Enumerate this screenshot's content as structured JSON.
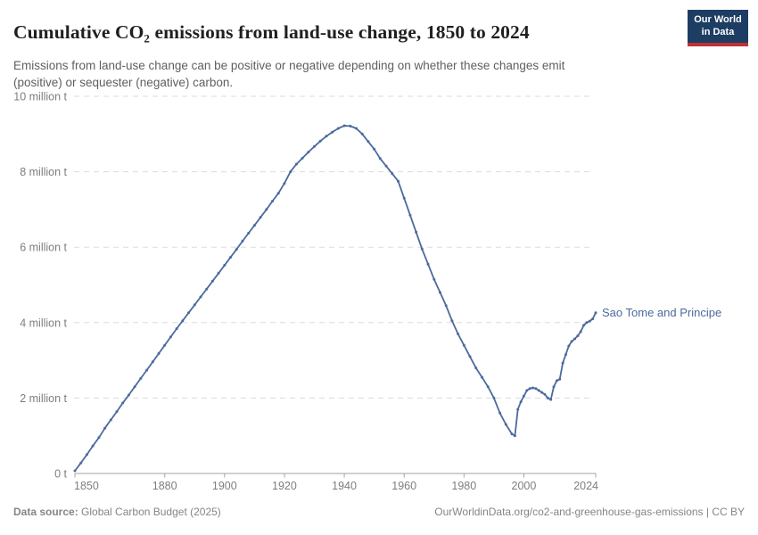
{
  "header": {
    "title": "Cumulative CO₂ emissions from land-use change, 1850 to 2024",
    "subtitle": "Emissions from land-use change can be positive or negative depending on whether these changes emit (positive) or sequester (negative) carbon.",
    "logo": {
      "line1": "Our World",
      "line2": "in Data"
    }
  },
  "footer": {
    "source_label": "Data source:",
    "source_value": " Global Carbon Budget (2025)",
    "attribution": "OurWorldinData.org/co2-and-greenhouse-gas-emissions | CC BY"
  },
  "colors": {
    "line": "#4c6a9c",
    "grid": "#dadcde",
    "axis": "#a3a3a3",
    "tick_label": "#7e7e7e",
    "logo_bg": "#1d3d63",
    "logo_bar": "#bf3036"
  },
  "chart_data": {
    "type": "line",
    "title": "Cumulative CO₂ emissions from land-use change, 1850 to 2024",
    "subtitle": "Emissions from land-use change can be positive or negative depending on whether these changes emit (positive) or sequester (negative) carbon.",
    "xlabel": "",
    "ylabel": "cumulative CO₂ emissions",
    "unit": "million t",
    "grid": "dashed horizontal",
    "legend_position": "end-of-line label",
    "x": {
      "min": 1850,
      "max": 2024,
      "ticks": [
        1850,
        1880,
        1900,
        1920,
        1940,
        1960,
        1980,
        2000,
        2024
      ]
    },
    "y": {
      "min": 0,
      "max": 10,
      "tick_values": [
        0,
        2,
        4,
        6,
        8,
        10
      ],
      "tick_labels": [
        "0 t",
        "2 million t",
        "4 million t",
        "6 million t",
        "8 million t",
        "10 million t"
      ]
    },
    "series": [
      {
        "name": "Sao Tome and Principe",
        "color": "#4c6a9c",
        "points": [
          [
            1850,
            0.07
          ],
          [
            1852,
            0.28
          ],
          [
            1854,
            0.5
          ],
          [
            1856,
            0.73
          ],
          [
            1858,
            0.95
          ],
          [
            1860,
            1.2
          ],
          [
            1862,
            1.42
          ],
          [
            1864,
            1.64
          ],
          [
            1866,
            1.87
          ],
          [
            1868,
            2.08
          ],
          [
            1870,
            2.3
          ],
          [
            1872,
            2.52
          ],
          [
            1874,
            2.74
          ],
          [
            1876,
            2.96
          ],
          [
            1878,
            3.18
          ],
          [
            1880,
            3.4
          ],
          [
            1882,
            3.62
          ],
          [
            1884,
            3.84
          ],
          [
            1886,
            4.05
          ],
          [
            1888,
            4.26
          ],
          [
            1890,
            4.47
          ],
          [
            1892,
            4.68
          ],
          [
            1894,
            4.89
          ],
          [
            1896,
            5.1
          ],
          [
            1898,
            5.31
          ],
          [
            1900,
            5.52
          ],
          [
            1902,
            5.73
          ],
          [
            1904,
            5.94
          ],
          [
            1906,
            6.16
          ],
          [
            1908,
            6.37
          ],
          [
            1910,
            6.58
          ],
          [
            1912,
            6.79
          ],
          [
            1914,
            7.0
          ],
          [
            1916,
            7.22
          ],
          [
            1918,
            7.43
          ],
          [
            1920,
            7.69
          ],
          [
            1922,
            8.0
          ],
          [
            1924,
            8.2
          ],
          [
            1926,
            8.36
          ],
          [
            1928,
            8.52
          ],
          [
            1930,
            8.67
          ],
          [
            1932,
            8.81
          ],
          [
            1934,
            8.94
          ],
          [
            1936,
            9.05
          ],
          [
            1938,
            9.15
          ],
          [
            1940,
            9.22
          ],
          [
            1942,
            9.21
          ],
          [
            1944,
            9.15
          ],
          [
            1946,
            9.0
          ],
          [
            1948,
            8.8
          ],
          [
            1950,
            8.6
          ],
          [
            1952,
            8.35
          ],
          [
            1954,
            8.15
          ],
          [
            1956,
            7.95
          ],
          [
            1958,
            7.75
          ],
          [
            1960,
            7.3
          ],
          [
            1962,
            6.85
          ],
          [
            1964,
            6.4
          ],
          [
            1966,
            5.95
          ],
          [
            1968,
            5.55
          ],
          [
            1970,
            5.15
          ],
          [
            1972,
            4.8
          ],
          [
            1974,
            4.45
          ],
          [
            1976,
            4.05
          ],
          [
            1978,
            3.7
          ],
          [
            1980,
            3.4
          ],
          [
            1982,
            3.1
          ],
          [
            1984,
            2.8
          ],
          [
            1986,
            2.55
          ],
          [
            1988,
            2.3
          ],
          [
            1990,
            2.0
          ],
          [
            1992,
            1.6
          ],
          [
            1994,
            1.3
          ],
          [
            1996,
            1.05
          ],
          [
            1997,
            1.0
          ],
          [
            1998,
            1.7
          ],
          [
            1999,
            1.9
          ],
          [
            2000,
            2.05
          ],
          [
            2001,
            2.2
          ],
          [
            2002,
            2.25
          ],
          [
            2003,
            2.27
          ],
          [
            2004,
            2.25
          ],
          [
            2005,
            2.2
          ],
          [
            2006,
            2.15
          ],
          [
            2007,
            2.1
          ],
          [
            2008,
            2.0
          ],
          [
            2009,
            1.96
          ],
          [
            2010,
            2.3
          ],
          [
            2011,
            2.46
          ],
          [
            2012,
            2.5
          ],
          [
            2013,
            2.93
          ],
          [
            2014,
            3.15
          ],
          [
            2015,
            3.38
          ],
          [
            2016,
            3.5
          ],
          [
            2017,
            3.57
          ],
          [
            2018,
            3.65
          ],
          [
            2019,
            3.76
          ],
          [
            2020,
            3.93
          ],
          [
            2021,
            4.0
          ],
          [
            2022,
            4.04
          ],
          [
            2023,
            4.1
          ],
          [
            2024,
            4.26
          ]
        ]
      }
    ]
  }
}
